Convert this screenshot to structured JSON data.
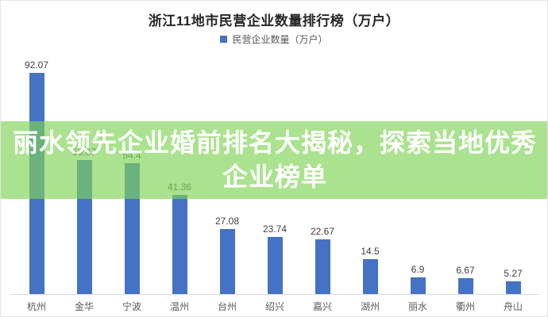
{
  "chart_data": {
    "type": "bar",
    "title": "浙江11地市民营企业数量排行榜（万户）",
    "categories": [
      "杭州",
      "金华",
      "宁波",
      "温州",
      "台州",
      "绍兴",
      "嘉兴",
      "湖州",
      "丽水",
      "衢州",
      "舟山"
    ],
    "series": [
      {
        "name": "民营企业数量（万户）",
        "values": [
          92.07,
          55.87,
          54.4,
          41.36,
          27.08,
          23.74,
          22.67,
          14.5,
          6.9,
          6.67,
          5.27
        ]
      }
    ],
    "value_labels": [
      "92.07",
      "55.87",
      "54.4",
      "41.36",
      "27.08",
      "23.74",
      "22.67",
      "14.5",
      "6.9",
      "6.67",
      "5.27"
    ],
    "xlabel": "",
    "ylabel": "",
    "ylim": [
      0,
      100
    ],
    "grid": false,
    "legend_position": "top",
    "bar_color": "#4472C4"
  },
  "banner": {
    "line1": "丽水领先企业婚前排名大揭秘，探索当地优秀",
    "line2": "企业榜单",
    "overlay_color": "#80D356",
    "overlay_opacity": 0.66,
    "text_color": "#FFFFFF"
  },
  "colors": {
    "bar": "#4472C4",
    "axis_line": "#D9D9D9",
    "value_label": "#404040",
    "category_label": "#595959",
    "title_text": "#262626",
    "card_background": "#FFFFFF"
  }
}
